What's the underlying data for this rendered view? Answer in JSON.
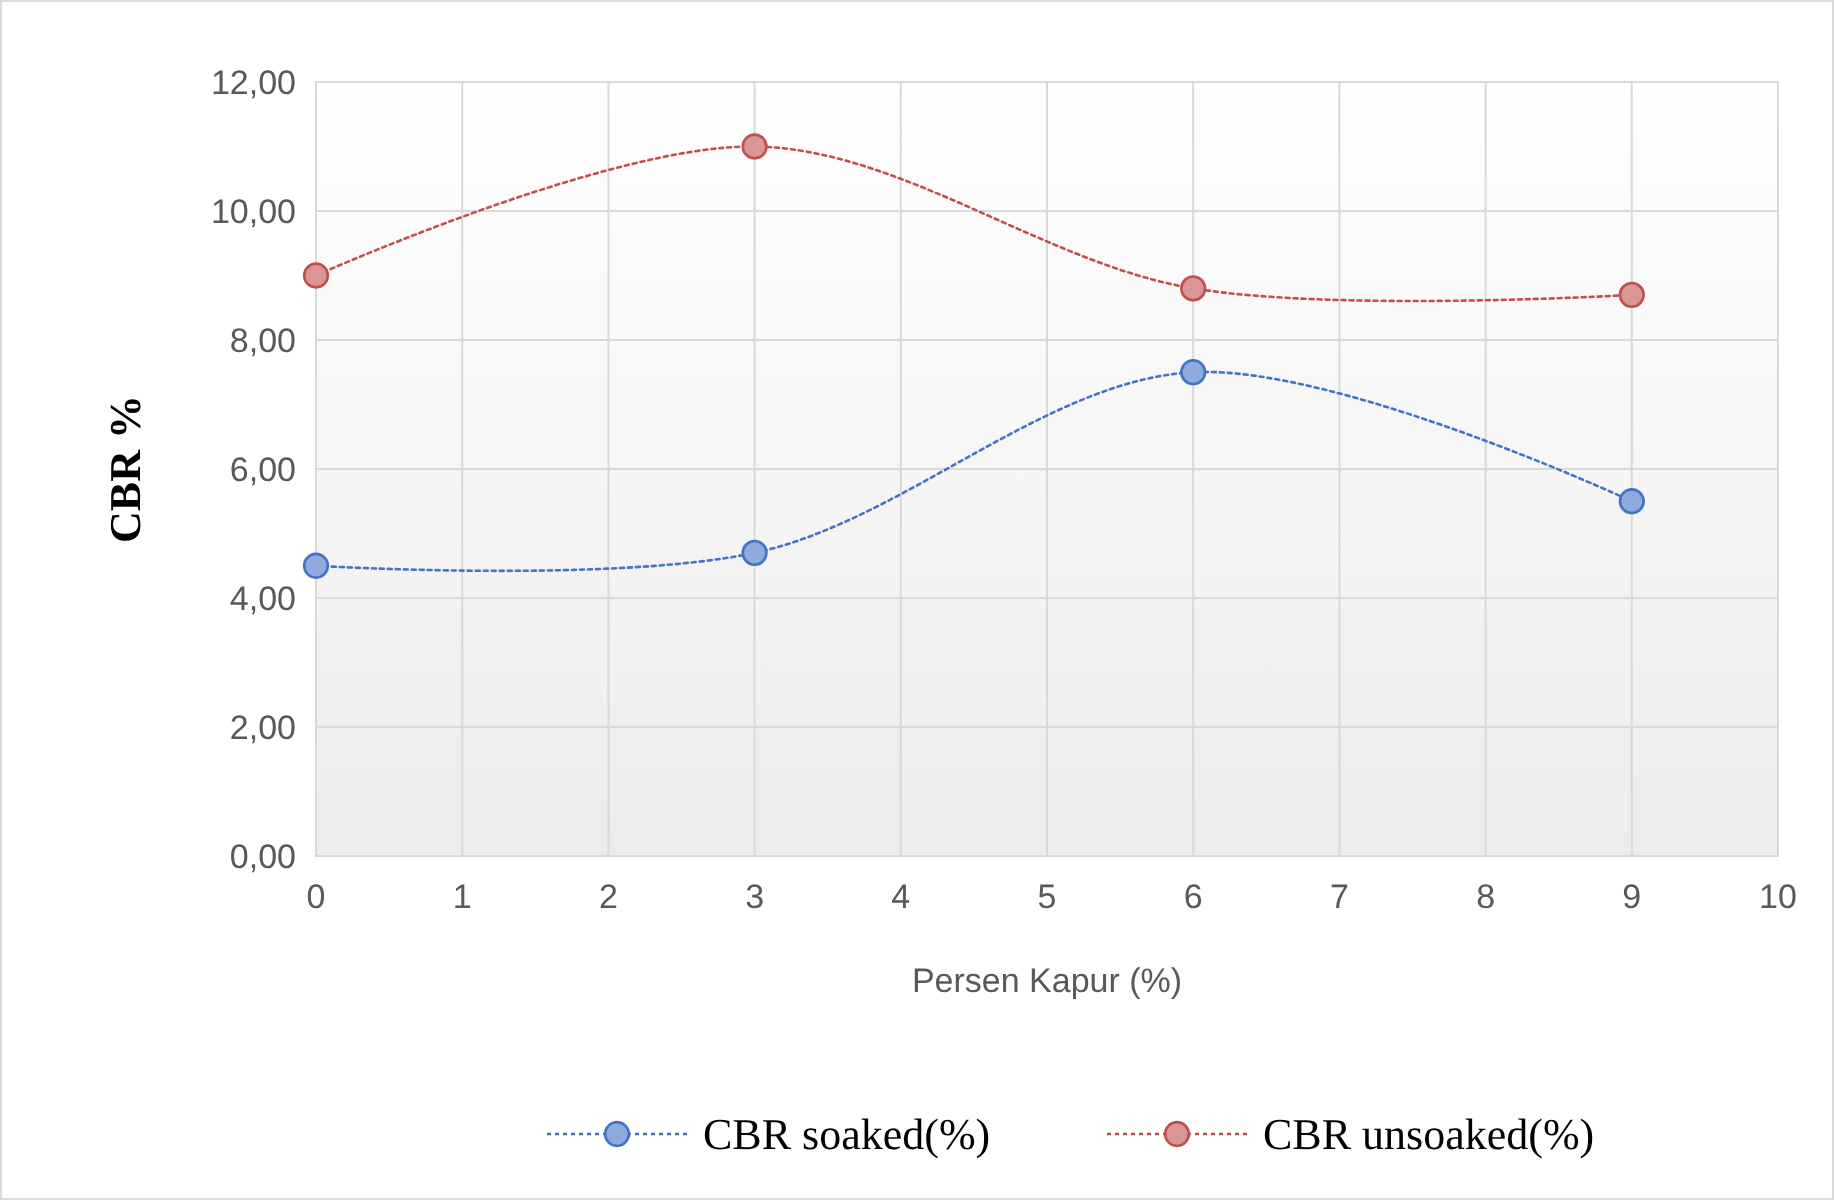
{
  "chart_data": {
    "type": "line",
    "xlabel": "Persen Kapur (%)",
    "ylabel": "CBR %",
    "xlim": [
      0,
      10
    ],
    "xticks": [
      0,
      1,
      2,
      3,
      4,
      5,
      6,
      7,
      8,
      9,
      10
    ],
    "ylim": [
      0,
      12
    ],
    "yticks": [
      {
        "value": 0,
        "label": "0,00"
      },
      {
        "value": 2,
        "label": "2,00"
      },
      {
        "value": 4,
        "label": "4,00"
      },
      {
        "value": 6,
        "label": "6,00"
      },
      {
        "value": 8,
        "label": "8,00"
      },
      {
        "value": 10,
        "label": "10,00"
      },
      {
        "value": 12,
        "label": "12,00"
      }
    ],
    "grid": true,
    "legend": "bottom",
    "marker": "circle",
    "line_style": "dotted",
    "series": [
      {
        "name": "CBR soaked(%)",
        "color": "#4472c4",
        "x": [
          0,
          3,
          6,
          9
        ],
        "values": [
          4.5,
          4.7,
          7.5,
          5.5
        ]
      },
      {
        "name": "CBR unsoaked(%)",
        "color": "#c0504d",
        "x": [
          0,
          3,
          6,
          9
        ],
        "values": [
          9.0,
          11.0,
          8.8,
          8.7
        ]
      }
    ]
  }
}
